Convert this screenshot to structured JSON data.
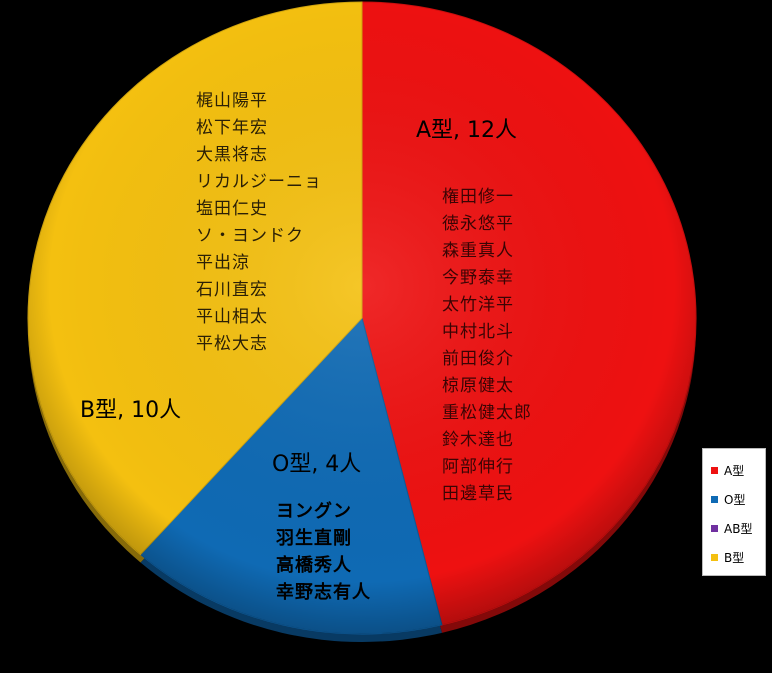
{
  "chart_data": {
    "type": "pie",
    "slices": [
      {
        "name": "A型",
        "value": 12,
        "color": "#ee1111",
        "label": "A型, 12人",
        "members": [
          "権田修一",
          "徳永悠平",
          "森重真人",
          "今野泰幸",
          "太竹洋平",
          "中村北斗",
          "前田俊介",
          "椋原健太",
          "重松健太郎",
          "鈴木達也",
          "阿部伸行",
          "田邊草民"
        ]
      },
      {
        "name": "O型",
        "value": 4,
        "color": "#0f6ab4",
        "label": "O型, 4人",
        "members": [
          "ヨングン",
          "羽生直剛",
          "高橋秀人",
          "幸野志有人"
        ]
      },
      {
        "name": "AB型",
        "value": 0,
        "color": "#7030a0",
        "label": "",
        "members": []
      },
      {
        "name": "B型",
        "value": 10,
        "color": "#f4c010",
        "label": "B型, 10人",
        "members": [
          "梶山陽平",
          "松下年宏",
          "大黒将志",
          "リカルジーニョ",
          "塩田仁史",
          "ソ・ヨンドク",
          "平出涼",
          "石川直宏",
          "平山相太",
          "平松大志"
        ]
      }
    ],
    "legend": {
      "position": "right",
      "entries": [
        "A型",
        "O型",
        "AB型",
        "B型"
      ]
    }
  }
}
